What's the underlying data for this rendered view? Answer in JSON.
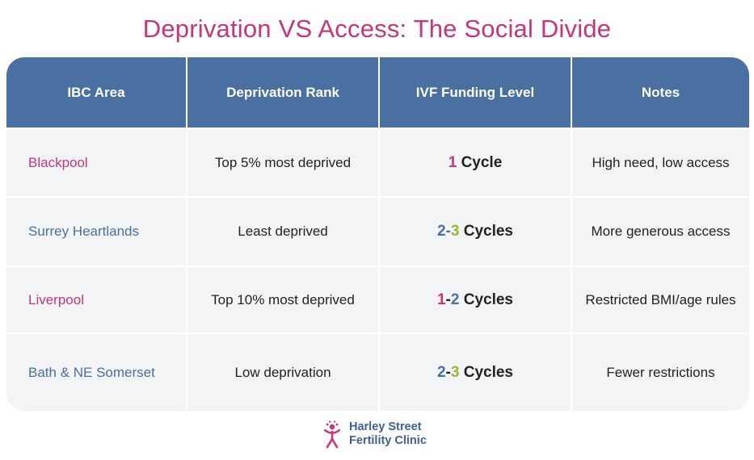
{
  "title": "Deprivation VS Access: The Social Divide",
  "colors": {
    "pink": "#c6357a",
    "blue": "#4a6fa1",
    "green": "#94b933",
    "header_bg": "#4a6fa1",
    "row_bg": "#f3f4f6"
  },
  "table": {
    "headers": [
      "IBC Area",
      "Deprivation Rank",
      "IVF Funding Level",
      "Notes"
    ],
    "rows": [
      {
        "area": "Blackpool",
        "area_color": "pink",
        "rank": "Top 5% most deprived",
        "funding": {
          "n1": "1",
          "sep": "",
          "n2": "",
          "label": "Cycle"
        },
        "notes": "High need, low access"
      },
      {
        "area": "Surrey Heartlands",
        "area_color": "blue",
        "rank": "Least deprived",
        "funding": {
          "n1": "2",
          "sep": " -",
          "n2": "3",
          "label": "Cycles"
        },
        "notes": "More generous access"
      },
      {
        "area": "Liverpool",
        "area_color": "pink",
        "rank": "Top 10% most deprived",
        "funding": {
          "n1": "1",
          "sep": " - ",
          "n2": "2",
          "label": "Cycles"
        },
        "notes": "Restricted BMI/age rules"
      },
      {
        "area": "Bath & NE Somerset",
        "area_color": "blue",
        "rank": "Low deprivation",
        "funding": {
          "n1": "2",
          "sep": " - ",
          "n2": "3",
          "label": "Cycles"
        },
        "notes": "Fewer restrictions"
      }
    ]
  },
  "logo": {
    "icon": "fertility-figure-icon",
    "line1": "Harley Street",
    "line2": "Fertility Clinic"
  }
}
